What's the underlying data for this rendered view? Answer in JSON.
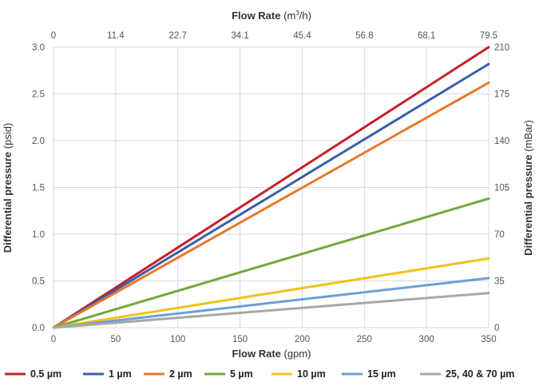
{
  "chart_data": {
    "type": "line",
    "x_bottom": {
      "label_bold": "Flow Rate",
      "label_unit": "(gpm)",
      "min": 0,
      "max": 350,
      "ticks": [
        "0",
        "50",
        "100",
        "150",
        "200",
        "250",
        "300",
        "350"
      ]
    },
    "x_top": {
      "label_bold": "Flow Rate",
      "label_unit_pre": "(m",
      "label_unit_sup": "3",
      "label_unit_post": "/h)",
      "ticks": [
        "0",
        "11.4",
        "22.7",
        "34.1",
        "45.4",
        "56.8",
        "68.1",
        "79.5"
      ]
    },
    "y_left": {
      "label_bold": "Differential pressure",
      "label_unit": "(psid)",
      "min": 0,
      "max": 3.0,
      "ticks": [
        "0.0",
        "0.5",
        "1.0",
        "1.5",
        "2.0",
        "2.5",
        "3.0"
      ]
    },
    "y_right": {
      "label_bold": "Differential pressure",
      "label_unit": "(mBar)",
      "ticks": [
        "0",
        "35",
        "70",
        "105",
        "140",
        "175",
        "210"
      ]
    },
    "grid": true,
    "legend_position": "bottom",
    "series": [
      {
        "name": "0.5 µm",
        "color": "#c8202a",
        "x": [
          0,
          350
        ],
        "y": [
          0,
          3.0
        ]
      },
      {
        "name": "1 µm",
        "color": "#3a5ea8",
        "x": [
          0,
          350
        ],
        "y": [
          0,
          2.82
        ]
      },
      {
        "name": "2 µm",
        "color": "#e8782a",
        "x": [
          0,
          350
        ],
        "y": [
          0,
          2.62
        ]
      },
      {
        "name": "5 µm",
        "color": "#72a83a",
        "x": [
          0,
          350
        ],
        "y": [
          0,
          1.38
        ]
      },
      {
        "name": "10 µm",
        "color": "#f5c018",
        "x": [
          0,
          350
        ],
        "y": [
          0,
          0.74
        ]
      },
      {
        "name": "15 µm",
        "color": "#6aa0d4",
        "x": [
          0,
          350
        ],
        "y": [
          0,
          0.53
        ]
      },
      {
        "name": "25, 40 & 70 µm",
        "color": "#a8a8a8",
        "x": [
          0,
          350
        ],
        "y": [
          0,
          0.37
        ]
      }
    ]
  }
}
